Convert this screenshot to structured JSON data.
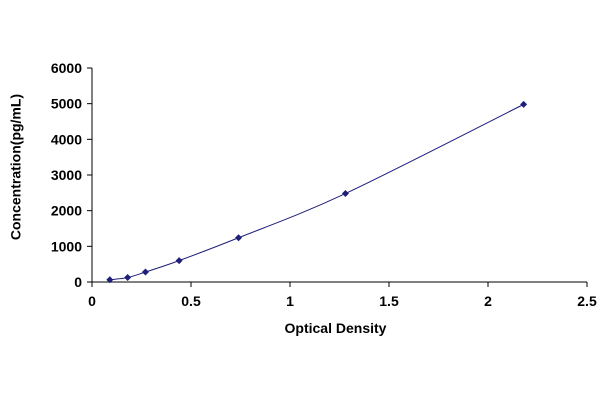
{
  "chart_data": {
    "type": "scatter",
    "title": "",
    "xlabel": "Optical Density",
    "ylabel": "Concentration(pg/mL)",
    "xlim": [
      0,
      2.5
    ],
    "ylim": [
      0,
      6000
    ],
    "xticks": [
      "0",
      "0.5",
      "1",
      "1.5",
      "2",
      "2.5"
    ],
    "yticks": [
      "0",
      "1000",
      "2000",
      "3000",
      "4000",
      "5000",
      "6000"
    ],
    "xtick_values": [
      0,
      0.5,
      1,
      1.5,
      2,
      2.5
    ],
    "ytick_values": [
      0,
      1000,
      2000,
      3000,
      4000,
      5000,
      6000
    ],
    "grid": false,
    "legend": "none",
    "series": [
      {
        "x": [
          0.09,
          0.18,
          0.27,
          0.44,
          0.74,
          1.28,
          2.18
        ],
        "y": [
          62,
          125,
          280,
          600,
          1240,
          2480,
          4980
        ],
        "fit": "smooth-curve"
      }
    ],
    "colors": {
      "marker": "#1f1f7a",
      "line": "#1f1f7a",
      "axis": "#000000"
    }
  }
}
